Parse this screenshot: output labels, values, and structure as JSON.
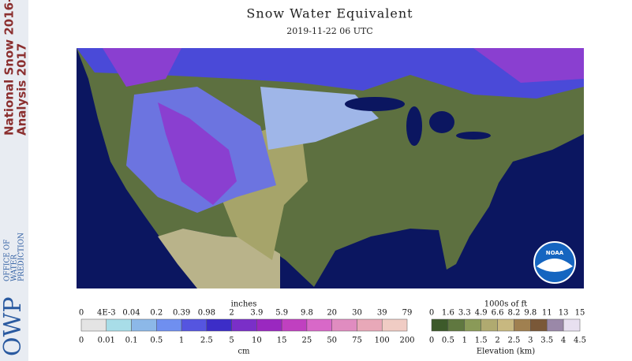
{
  "sidebar": {
    "title_lines": [
      "National Snow 2016-",
      "Analysis 2017"
    ],
    "office_lines": [
      "OFFICE OF",
      "WATER",
      "PREDICTION"
    ],
    "logo": "OWP"
  },
  "header": {
    "title": "Snow Water Equivalent",
    "subtitle": "2019-11-22 06 UTC"
  },
  "map": {
    "badge": "NOAA"
  },
  "legend_swe": {
    "top_unit": "inches",
    "top_labels": [
      "0",
      "4E-3",
      "0.04",
      "0.2",
      "0.39",
      "0.98",
      "2",
      "3.9",
      "5.9",
      "9.8",
      "20",
      "30",
      "39",
      "79"
    ],
    "bottom_labels": [
      "0",
      "0.01",
      "0.1",
      "0.5",
      "1",
      "2.5",
      "5",
      "10",
      "15",
      "25",
      "50",
      "75",
      "100",
      "200"
    ],
    "bottom_unit": "cm"
  },
  "legend_elevation": {
    "top_unit": "1000s of ft",
    "top_labels": [
      "0",
      "1.6",
      "3.3",
      "4.9",
      "6.6",
      "8.2",
      "9.8",
      "11",
      "13",
      "15"
    ],
    "bottom_labels": [
      "0",
      "0.5",
      "1",
      "1.5",
      "2",
      "2.5",
      "3",
      "3.5",
      "4",
      "4.5"
    ],
    "bottom_unit": "Elevation (km)"
  }
}
